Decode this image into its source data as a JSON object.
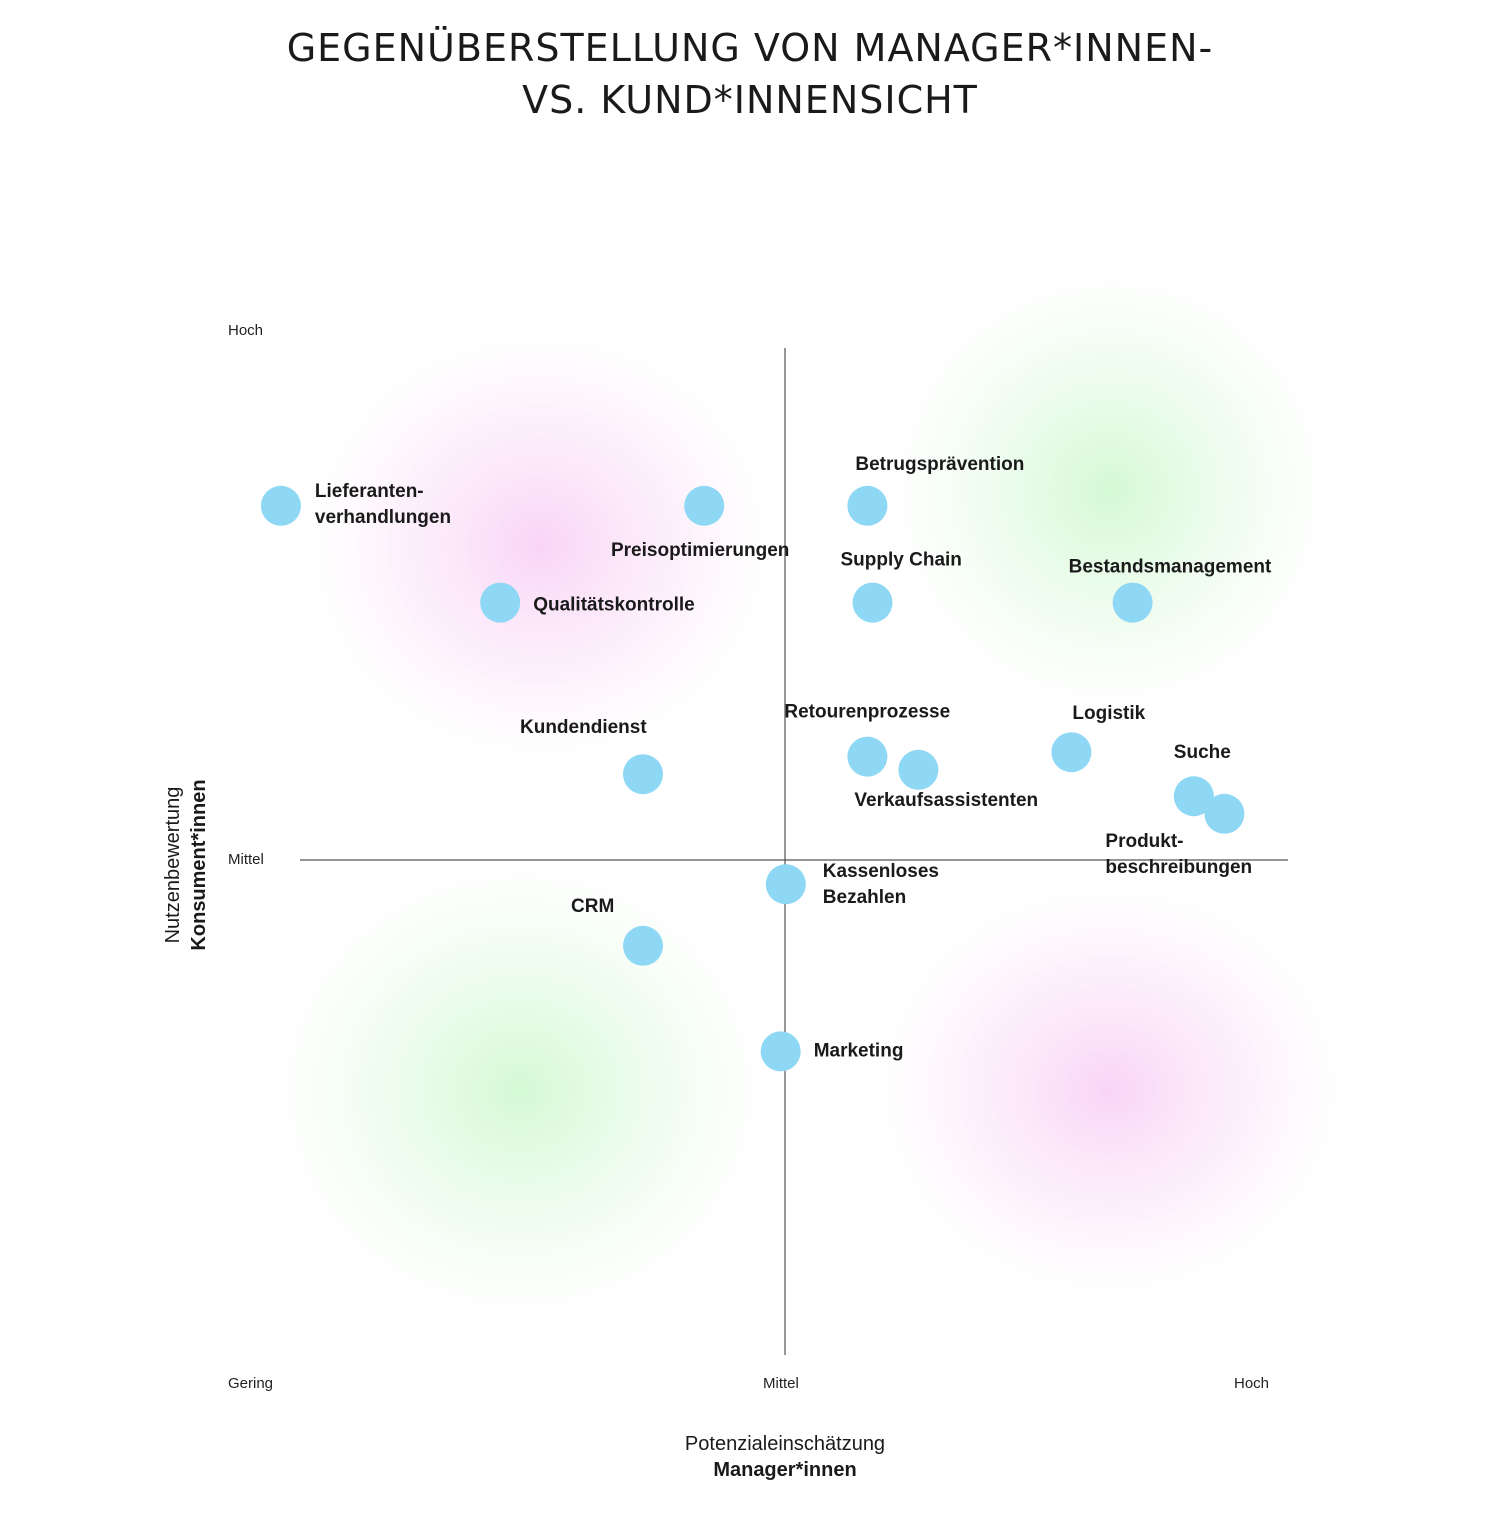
{
  "title": {
    "line1": "GEGENÜBERSTELLUNG VON MANAGER*INNEN-",
    "line2": "VS. KUND*INNENSICHT"
  },
  "colors": {
    "point": "#8fd8f5",
    "axis": "#555555",
    "blob_pink": "#f6c8f2",
    "blob_green": "#c8f5c8"
  },
  "chart_data": {
    "type": "scatter",
    "x_axis": {
      "title": "Potenzialeinschätzung",
      "subtitle": "Manager*innen",
      "ticks": [
        "Gering",
        "Mittel",
        "Hoch"
      ],
      "range": [
        0,
        10
      ]
    },
    "y_axis": {
      "title": "Nutzenbewertung",
      "subtitle": "Konsument*innen",
      "ticks": [
        "Hoch",
        "Mittel"
      ],
      "range": [
        0,
        10
      ]
    },
    "points": [
      {
        "label": "Lieferanten-",
        "label2": "verhandlungen",
        "x": 0.45,
        "y": 8.4
      },
      {
        "label": "Preisoptimierungen",
        "label2": "",
        "x": 4.6,
        "y": 8.4
      },
      {
        "label": "Betrugsprävention",
        "label2": "",
        "x": 6.2,
        "y": 8.4
      },
      {
        "label": "Qualitätskontrolle",
        "label2": "",
        "x": 2.6,
        "y": 7.3
      },
      {
        "label": "Supply Chain",
        "label2": "",
        "x": 6.25,
        "y": 7.3
      },
      {
        "label": "Bestandsmanagement",
        "label2": "",
        "x": 8.8,
        "y": 7.3
      },
      {
        "label": "Kundendienst",
        "label2": "",
        "x": 4.0,
        "y": 5.35
      },
      {
        "label": "Retourenprozesse",
        "label2": "",
        "x": 6.2,
        "y": 5.55
      },
      {
        "label": "Verkaufsassistenten",
        "label2": "",
        "x": 6.7,
        "y": 5.4
      },
      {
        "label": "Logistik",
        "label2": "",
        "x": 8.2,
        "y": 5.6
      },
      {
        "label": "Suche",
        "label2": "",
        "x": 9.4,
        "y": 5.1
      },
      {
        "label": "Produkt-",
        "label2": "beschreibungen",
        "x": 9.7,
        "y": 4.9
      },
      {
        "label": "Kassenloses",
        "label2": "Bezahlen",
        "x": 5.4,
        "y": 4.1
      },
      {
        "label": "CRM",
        "label2": "",
        "x": 4.0,
        "y": 3.4
      },
      {
        "label": "Marketing",
        "label2": "",
        "x": 5.35,
        "y": 2.2
      }
    ]
  }
}
